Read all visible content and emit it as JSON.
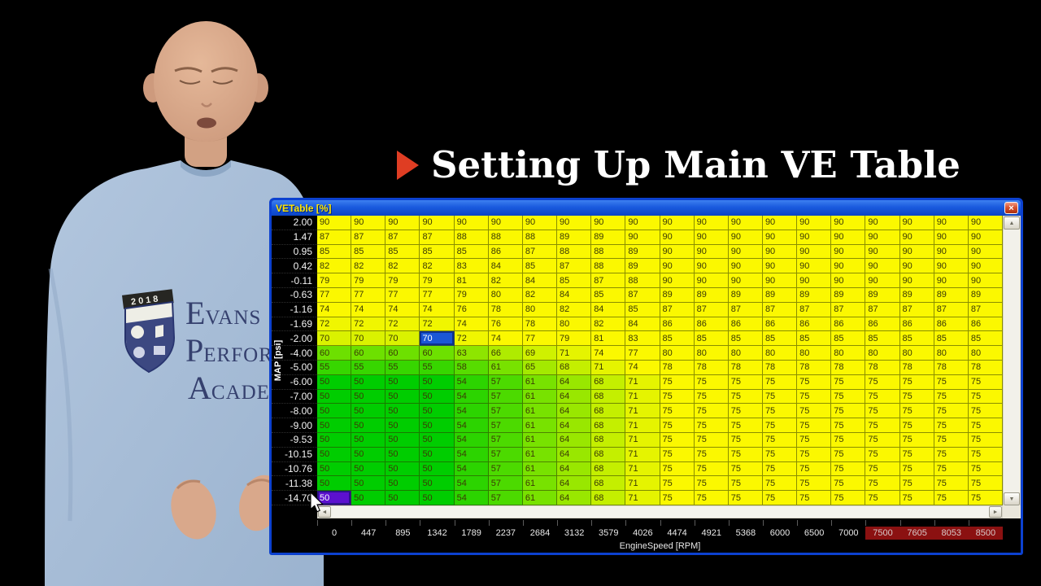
{
  "overlay": {
    "title": "Setting Up Main VE Table",
    "bullet_color": "#df3d23"
  },
  "person": {
    "badge_year": "2018",
    "shirt_lines": [
      "Evans",
      "Perform",
      "Academ"
    ],
    "shirt_color": "#a7bdd7",
    "skin_color": "#d9a88b"
  },
  "icons": {
    "up": "▲",
    "down": "▼",
    "left": "◄",
    "right": "►"
  },
  "window": {
    "title": "VETable [%]",
    "close_icon": "×",
    "y_axis_label": "MAP [psi]",
    "x_axis_label": "EngineSpeed [RPM]",
    "map_rows": [
      "2.00",
      "1.47",
      "0.95",
      "0.42",
      "-0.11",
      "-0.63",
      "-1.16",
      "-1.69",
      "-2.00",
      "-4.00",
      "-5.00",
      "-6.00",
      "-7.00",
      "-8.00",
      "-9.00",
      "-9.53",
      "-10.15",
      "-10.76",
      "-11.38",
      "-14.70"
    ],
    "rpm_cols": [
      "0",
      "447",
      "895",
      "1342",
      "1789",
      "2237",
      "2684",
      "3132",
      "3579",
      "4026",
      "4474",
      "4921",
      "5368",
      "6000",
      "6500",
      "7000",
      "7500",
      "7605",
      "8053",
      "8500"
    ],
    "redline_cols": [
      16,
      17,
      18,
      19
    ],
    "values": [
      [
        90,
        90,
        90,
        90,
        90,
        90,
        90,
        90,
        90,
        90,
        90,
        90,
        90,
        90,
        90,
        90,
        90,
        90,
        90,
        90
      ],
      [
        87,
        87,
        87,
        87,
        88,
        88,
        88,
        89,
        89,
        90,
        90,
        90,
        90,
        90,
        90,
        90,
        90,
        90,
        90,
        90
      ],
      [
        85,
        85,
        85,
        85,
        85,
        86,
        87,
        88,
        88,
        89,
        90,
        90,
        90,
        90,
        90,
        90,
        90,
        90,
        90,
        90
      ],
      [
        82,
        82,
        82,
        82,
        83,
        84,
        85,
        87,
        88,
        89,
        90,
        90,
        90,
        90,
        90,
        90,
        90,
        90,
        90,
        90
      ],
      [
        79,
        79,
        79,
        79,
        81,
        82,
        84,
        85,
        87,
        88,
        90,
        90,
        90,
        90,
        90,
        90,
        90,
        90,
        90,
        90
      ],
      [
        77,
        77,
        77,
        77,
        79,
        80,
        82,
        84,
        85,
        87,
        89,
        89,
        89,
        89,
        89,
        89,
        89,
        89,
        89,
        89
      ],
      [
        74,
        74,
        74,
        74,
        76,
        78,
        80,
        82,
        84,
        85,
        87,
        87,
        87,
        87,
        87,
        87,
        87,
        87,
        87,
        87
      ],
      [
        72,
        72,
        72,
        72,
        74,
        76,
        78,
        80,
        82,
        84,
        86,
        86,
        86,
        86,
        86,
        86,
        86,
        86,
        86,
        86
      ],
      [
        70,
        70,
        70,
        70,
        72,
        74,
        77,
        79,
        81,
        83,
        85,
        85,
        85,
        85,
        85,
        85,
        85,
        85,
        85,
        85
      ],
      [
        60,
        60,
        60,
        60,
        63,
        66,
        69,
        71,
        74,
        77,
        80,
        80,
        80,
        80,
        80,
        80,
        80,
        80,
        80,
        80
      ],
      [
        55,
        55,
        55,
        55,
        58,
        61,
        65,
        68,
        71,
        74,
        78,
        78,
        78,
        78,
        78,
        78,
        78,
        78,
        78,
        78
      ],
      [
        50,
        50,
        50,
        50,
        54,
        57,
        61,
        64,
        68,
        71,
        75,
        75,
        75,
        75,
        75,
        75,
        75,
        75,
        75,
        75
      ],
      [
        50,
        50,
        50,
        50,
        54,
        57,
        61,
        64,
        68,
        71,
        75,
        75,
        75,
        75,
        75,
        75,
        75,
        75,
        75,
        75
      ],
      [
        50,
        50,
        50,
        50,
        54,
        57,
        61,
        64,
        68,
        71,
        75,
        75,
        75,
        75,
        75,
        75,
        75,
        75,
        75,
        75
      ],
      [
        50,
        50,
        50,
        50,
        54,
        57,
        61,
        64,
        68,
        71,
        75,
        75,
        75,
        75,
        75,
        75,
        75,
        75,
        75,
        75
      ],
      [
        50,
        50,
        50,
        50,
        54,
        57,
        61,
        64,
        68,
        71,
        75,
        75,
        75,
        75,
        75,
        75,
        75,
        75,
        75,
        75
      ],
      [
        50,
        50,
        50,
        50,
        54,
        57,
        61,
        64,
        68,
        71,
        75,
        75,
        75,
        75,
        75,
        75,
        75,
        75,
        75,
        75
      ],
      [
        50,
        50,
        50,
        50,
        54,
        57,
        61,
        64,
        68,
        71,
        75,
        75,
        75,
        75,
        75,
        75,
        75,
        75,
        75,
        75
      ],
      [
        50,
        50,
        50,
        50,
        54,
        57,
        61,
        64,
        68,
        71,
        75,
        75,
        75,
        75,
        75,
        75,
        75,
        75,
        75,
        75
      ],
      [
        50,
        50,
        50,
        50,
        54,
        57,
        61,
        64,
        68,
        71,
        75,
        75,
        75,
        75,
        75,
        75,
        75,
        75,
        75,
        75
      ]
    ],
    "selection": {
      "primary": {
        "row": 8,
        "col": 3,
        "color": "#1b57d6"
      },
      "secondary": {
        "row": 19,
        "col": 0,
        "color": "#5c10cf"
      }
    },
    "color_scale": {
      "min_value": 50,
      "max_value": 73,
      "low_color": [
        0,
        205,
        0
      ],
      "high_color": [
        251,
        248,
        0
      ]
    },
    "colors": {
      "titlebar_text": "#ffe400",
      "redline_bg": "#8b1111",
      "redline_text": "#d8caca",
      "axis_text": "#e9e9e9"
    }
  }
}
